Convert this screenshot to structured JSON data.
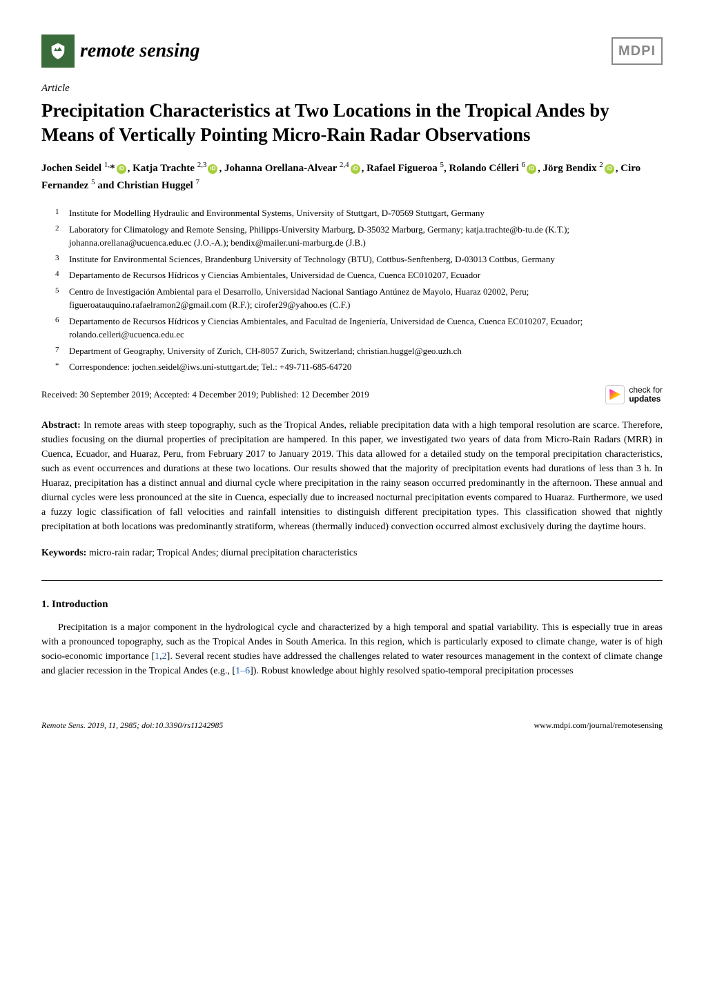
{
  "journal": {
    "name": "remote sensing",
    "publisher": "MDPI"
  },
  "article_type": "Article",
  "title": "Precipitation Characteristics at Two Locations in the Tropical Andes by Means of Vertically Pointing Micro-Rain Radar Observations",
  "authors_html": "Jochen Seidel <sup>1,</sup>*<span class='orcid'></span>, Katja Trachte <sup>2,3</sup><span class='orcid'></span>, Johanna Orellana-Alvear <sup>2,4</sup><span class='orcid'></span>, Rafael Figueroa <sup>5</sup>, Rolando Célleri <sup>6</sup><span class='orcid'></span>, Jörg Bendix <sup>2</sup><span class='orcid'></span>, Ciro Fernandez <sup>5</sup> and Christian Huggel <sup>7</sup>",
  "affiliations": [
    {
      "num": "1",
      "text": "Institute for Modelling Hydraulic and Environmental Systems, University of Stuttgart, D-70569 Stuttgart, Germany"
    },
    {
      "num": "2",
      "text": "Laboratory for Climatology and Remote Sensing, Philipps-University Marburg, D-35032 Marburg, Germany; katja.trachte@b-tu.de (K.T.); johanna.orellana@ucuenca.edu.ec (J.O.-A.); bendix@mailer.uni-marburg.de (J.B.)"
    },
    {
      "num": "3",
      "text": "Institute for Environmental Sciences, Brandenburg University of Technology (BTU), Cottbus-Senftenberg, D-03013 Cottbus, Germany"
    },
    {
      "num": "4",
      "text": "Departamento de Recursos Hídricos y Ciencias Ambientales, Universidad de Cuenca, Cuenca EC010207, Ecuador"
    },
    {
      "num": "5",
      "text": "Centro de Investigación Ambiental para el Desarrollo, Universidad Nacional Santiago Antúnez de Mayolo, Huaraz 02002, Peru; figueroatauquino.rafaelramon2@gmail.com (R.F.); cirofer29@yahoo.es (C.F.)"
    },
    {
      "num": "6",
      "text": "Departamento de Recursos Hídricos y Ciencias Ambientales, and Facultad de Ingeniería, Universidad de Cuenca, Cuenca EC010207, Ecuador; rolando.celleri@ucuenca.edu.ec"
    },
    {
      "num": "7",
      "text": "Department of Geography, University of Zurich, CH-8057 Zurich, Switzerland; christian.huggel@geo.uzh.ch"
    },
    {
      "num": "*",
      "text": "Correspondence: jochen.seidel@iws.uni-stuttgart.de; Tel.: +49-711-685-64720"
    }
  ],
  "dates": "Received: 30 September 2019; Accepted: 4 December 2019; Published: 12 December 2019",
  "updates_label_1": "check for",
  "updates_label_2": "updates",
  "abstract_label": "Abstract:",
  "abstract": "In remote areas with steep topography, such as the Tropical Andes, reliable precipitation data with a high temporal resolution are scarce. Therefore, studies focusing on the diurnal properties of precipitation are hampered. In this paper, we investigated two years of data from Micro-Rain Radars (MRR) in Cuenca, Ecuador, and Huaraz, Peru, from February 2017 to January 2019. This data allowed for a detailed study on the temporal precipitation characteristics, such as event occurrences and durations at these two locations. Our results showed that the majority of precipitation events had durations of less than 3 h. In Huaraz, precipitation has a distinct annual and diurnal cycle where precipitation in the rainy season occurred predominantly in the afternoon. These annual and diurnal cycles were less pronounced at the site in Cuenca, especially due to increased nocturnal precipitation events compared to Huaraz. Furthermore, we used a fuzzy logic classification of fall velocities and rainfall intensities to distinguish different precipitation types. This classification showed that nightly precipitation at both locations was predominantly stratiform, whereas (thermally induced) convection occurred almost exclusively during the daytime hours.",
  "keywords_label": "Keywords:",
  "keywords": "micro-rain radar; Tropical Andes; diurnal precipitation characteristics",
  "section_1_heading": "1. Introduction",
  "section_1_body": "Precipitation is a major component in the hydrological cycle and characterized by a high temporal and spatial variability. This is especially true in areas with a pronounced topography, such as the Tropical Andes in South America. In this region, which is particularly exposed to climate change, water is of high socio-economic importance [1,2]. Several recent studies have addressed the challenges related to water resources management in the context of climate change and glacier recession in the Tropical Andes (e.g., [1–6]). Robust knowledge about highly resolved spatio-temporal precipitation processes",
  "refs": {
    "r1": "1",
    "r2": "2",
    "r1_6": "1–6"
  },
  "footer": {
    "left": "Remote Sens. 2019, 11, 2985; doi:10.3390/rs11242985",
    "right": "www.mdpi.com/journal/remotesensing"
  }
}
